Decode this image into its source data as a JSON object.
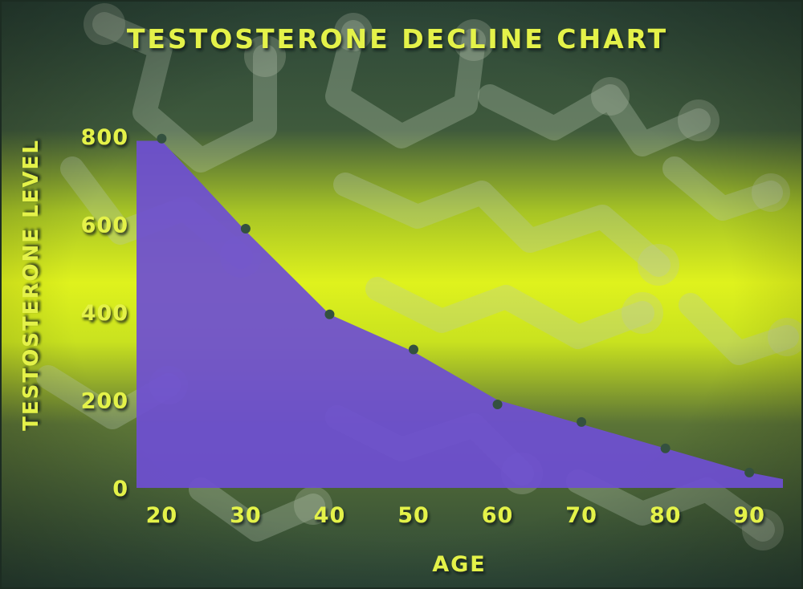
{
  "chart_data": {
    "type": "area",
    "title": "TESTOSTERONE DECLINE CHART",
    "xlabel": "AGE",
    "ylabel": "TESTOSTERONE LEVEL",
    "x": [
      20,
      30,
      40,
      50,
      60,
      70,
      80,
      90
    ],
    "xlim": [
      17,
      94
    ],
    "ylim": [
      0,
      800
    ],
    "x_ticks": [
      "20",
      "30",
      "40",
      "50",
      "60",
      "70",
      "80",
      "90"
    ],
    "y_ticks": [
      "0",
      "200",
      "400",
      "600",
      "800"
    ],
    "area_series": {
      "x": [
        17,
        20,
        30,
        40,
        50,
        60,
        70,
        80,
        90,
        94
      ],
      "y": [
        790,
        790,
        585,
        395,
        310,
        200,
        145,
        90,
        35,
        20
      ]
    },
    "points": [
      {
        "x": 20,
        "y": 795
      },
      {
        "x": 30,
        "y": 590
      },
      {
        "x": 40,
        "y": 395
      },
      {
        "x": 50,
        "y": 315
      },
      {
        "x": 60,
        "y": 190
      },
      {
        "x": 70,
        "y": 150
      },
      {
        "x": 80,
        "y": 90
      },
      {
        "x": 90,
        "y": 35
      }
    ],
    "grid": true,
    "colors": {
      "area": "#6e4fd2",
      "gridline": "#2a4034",
      "points": "#34513f",
      "text": "#e4f24a",
      "background_dark": "#2f4a3c",
      "background_glow": "#d8ef1c"
    }
  }
}
